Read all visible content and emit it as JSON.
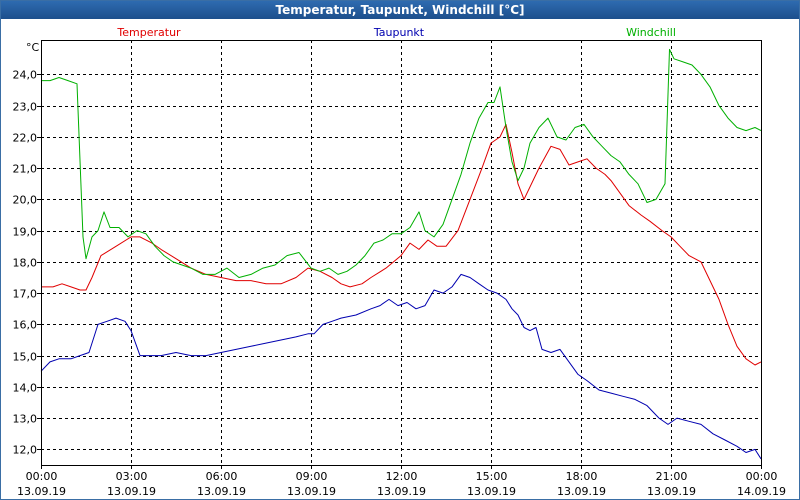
{
  "window": {
    "title": "Temperatur, Taupunkt, Windchill [°C]"
  },
  "colors": {
    "temperatur": "#e00000",
    "taupunkt": "#0000b0",
    "windchill": "#00b000",
    "grid": "#000000"
  },
  "chart_data": {
    "type": "line",
    "title": "Temperatur, Taupunkt, Windchill [°C]",
    "ylabel": "°C",
    "xlabel": "",
    "ylim": [
      11.5,
      25.1
    ],
    "xlim": [
      0,
      24
    ],
    "yticks": [
      {
        "value": 12,
        "label": "12,0"
      },
      {
        "value": 13,
        "label": "13,0"
      },
      {
        "value": 14,
        "label": "14,0"
      },
      {
        "value": 15,
        "label": "15,0"
      },
      {
        "value": 16,
        "label": "16,0"
      },
      {
        "value": 17,
        "label": "17,0"
      },
      {
        "value": 18,
        "label": "18,0"
      },
      {
        "value": 19,
        "label": "19,0"
      },
      {
        "value": 20,
        "label": "20,0"
      },
      {
        "value": 21,
        "label": "21,0"
      },
      {
        "value": 22,
        "label": "22,0"
      },
      {
        "value": 23,
        "label": "23,0"
      },
      {
        "value": 24,
        "label": "24,0"
      }
    ],
    "xticks": [
      {
        "value": 0,
        "time": "00:00",
        "date": "13.09.19"
      },
      {
        "value": 3,
        "time": "03:00",
        "date": "13.09.19"
      },
      {
        "value": 6,
        "time": "06:00",
        "date": "13.09.19"
      },
      {
        "value": 9,
        "time": "09:00",
        "date": "13.09.19"
      },
      {
        "value": 12,
        "time": "12:00",
        "date": "13.09.19"
      },
      {
        "value": 15,
        "time": "15:00",
        "date": "13.09.19"
      },
      {
        "value": 18,
        "time": "18:00",
        "date": "13.09.19"
      },
      {
        "value": 21,
        "time": "21:00",
        "date": "13.09.19"
      },
      {
        "value": 24,
        "time": "00:00",
        "date": "14.09.19"
      }
    ],
    "legend": {
      "temperatur": "Temperatur",
      "taupunkt": "Taupunkt",
      "windchill": "Windchill"
    },
    "series": [
      {
        "name": "Temperatur",
        "color": "#e00000",
        "x": [
          0.0,
          0.4,
          0.7,
          1.0,
          1.3,
          1.5,
          1.7,
          2.0,
          2.5,
          3.0,
          3.3,
          3.7,
          4.0,
          4.5,
          5.0,
          5.5,
          6.0,
          6.5,
          7.0,
          7.5,
          8.0,
          8.5,
          8.9,
          9.3,
          9.7,
          10.0,
          10.3,
          10.7,
          11.0,
          11.5,
          12.0,
          12.3,
          12.6,
          12.9,
          13.2,
          13.5,
          13.9,
          14.3,
          14.7,
          15.0,
          15.3,
          15.5,
          15.7,
          15.9,
          16.1,
          16.3,
          16.6,
          17.0,
          17.3,
          17.6,
          17.9,
          18.2,
          18.5,
          18.8,
          19.0,
          19.3,
          19.6,
          20.0,
          20.3,
          20.7,
          21.0,
          21.3,
          21.6,
          22.0,
          22.3,
          22.6,
          22.9,
          23.2,
          23.5,
          23.8,
          24.0
        ],
        "values": [
          17.2,
          17.2,
          17.3,
          17.2,
          17.1,
          17.1,
          17.5,
          18.2,
          18.5,
          18.8,
          18.8,
          18.6,
          18.4,
          18.1,
          17.8,
          17.6,
          17.5,
          17.4,
          17.4,
          17.3,
          17.3,
          17.5,
          17.8,
          17.7,
          17.5,
          17.3,
          17.2,
          17.3,
          17.5,
          17.8,
          18.2,
          18.6,
          18.4,
          18.7,
          18.5,
          18.5,
          19.0,
          20.0,
          21.0,
          21.8,
          22.0,
          22.4,
          21.5,
          20.5,
          20.0,
          20.4,
          21.0,
          21.7,
          21.6,
          21.1,
          21.2,
          21.3,
          21.0,
          20.8,
          20.6,
          20.2,
          19.8,
          19.5,
          19.3,
          19.0,
          18.8,
          18.5,
          18.2,
          18.0,
          17.4,
          16.8,
          16.0,
          15.3,
          14.9,
          14.7,
          14.8
        ]
      },
      {
        "name": "Taupunkt",
        "color": "#0000b0",
        "x": [
          0.0,
          0.3,
          0.6,
          1.0,
          1.3,
          1.6,
          1.9,
          2.2,
          2.5,
          2.8,
          3.0,
          3.3,
          3.6,
          4.0,
          4.5,
          5.0,
          5.5,
          6.0,
          6.5,
          7.0,
          7.5,
          8.0,
          8.5,
          8.9,
          9.1,
          9.4,
          9.7,
          10.0,
          10.5,
          11.0,
          11.3,
          11.6,
          11.9,
          12.2,
          12.5,
          12.8,
          13.1,
          13.4,
          13.7,
          14.0,
          14.3,
          14.6,
          14.9,
          15.2,
          15.5,
          15.7,
          15.9,
          16.1,
          16.3,
          16.5,
          16.7,
          17.0,
          17.3,
          17.6,
          17.9,
          18.2,
          18.6,
          19.0,
          19.4,
          19.8,
          20.2,
          20.6,
          20.9,
          21.2,
          21.6,
          22.0,
          22.4,
          22.8,
          23.2,
          23.5,
          23.8,
          24.0
        ],
        "values": [
          14.5,
          14.8,
          14.9,
          14.9,
          15.0,
          15.1,
          16.0,
          16.1,
          16.2,
          16.1,
          15.8,
          15.0,
          15.0,
          15.0,
          15.1,
          15.0,
          15.0,
          15.1,
          15.2,
          15.3,
          15.4,
          15.5,
          15.6,
          15.7,
          15.7,
          16.0,
          16.1,
          16.2,
          16.3,
          16.5,
          16.6,
          16.8,
          16.6,
          16.7,
          16.5,
          16.6,
          17.1,
          17.0,
          17.2,
          17.6,
          17.5,
          17.3,
          17.1,
          17.0,
          16.8,
          16.5,
          16.3,
          15.9,
          15.8,
          15.9,
          15.2,
          15.1,
          15.2,
          14.8,
          14.4,
          14.2,
          13.9,
          13.8,
          13.7,
          13.6,
          13.4,
          13.0,
          12.8,
          13.0,
          12.9,
          12.8,
          12.5,
          12.3,
          12.1,
          11.9,
          12.0,
          11.7
        ]
      },
      {
        "name": "Windchill",
        "color": "#00b000",
        "x": [
          0.0,
          0.3,
          0.6,
          0.9,
          1.2,
          1.4,
          1.5,
          1.7,
          1.9,
          2.1,
          2.3,
          2.6,
          2.9,
          3.2,
          3.5,
          3.8,
          4.1,
          4.4,
          4.7,
          5.0,
          5.4,
          5.8,
          6.2,
          6.6,
          7.0,
          7.4,
          7.8,
          8.2,
          8.6,
          9.0,
          9.3,
          9.6,
          9.9,
          10.2,
          10.5,
          10.8,
          11.1,
          11.4,
          11.7,
          12.0,
          12.3,
          12.6,
          12.8,
          13.1,
          13.4,
          13.7,
          14.0,
          14.3,
          14.6,
          14.9,
          15.1,
          15.3,
          15.5,
          15.7,
          15.9,
          16.1,
          16.3,
          16.6,
          16.9,
          17.2,
          17.5,
          17.8,
          18.1,
          18.4,
          18.7,
          19.0,
          19.3,
          19.6,
          19.9,
          20.2,
          20.5,
          20.8,
          20.95,
          21.1,
          21.4,
          21.7,
          22.0,
          22.3,
          22.6,
          22.9,
          23.2,
          23.5,
          23.8,
          24.0
        ],
        "values": [
          23.8,
          23.8,
          23.9,
          23.8,
          23.7,
          18.8,
          18.1,
          18.8,
          19.0,
          19.6,
          19.1,
          19.1,
          18.8,
          19.0,
          18.9,
          18.5,
          18.2,
          18.0,
          17.9,
          17.8,
          17.6,
          17.6,
          17.8,
          17.5,
          17.6,
          17.8,
          17.9,
          18.2,
          18.3,
          17.8,
          17.7,
          17.8,
          17.6,
          17.7,
          17.9,
          18.2,
          18.6,
          18.7,
          18.9,
          18.9,
          19.1,
          19.6,
          19.0,
          18.8,
          19.2,
          20.0,
          20.8,
          21.8,
          22.6,
          23.1,
          23.1,
          23.6,
          22.3,
          21.2,
          20.6,
          21.0,
          21.8,
          22.3,
          22.6,
          22.0,
          21.9,
          22.3,
          22.4,
          22.0,
          21.7,
          21.4,
          21.2,
          20.8,
          20.5,
          19.9,
          20.0,
          20.5,
          24.8,
          24.5,
          24.4,
          24.3,
          24.0,
          23.6,
          23.0,
          22.6,
          22.3,
          22.2,
          22.3,
          22.2
        ]
      }
    ]
  }
}
